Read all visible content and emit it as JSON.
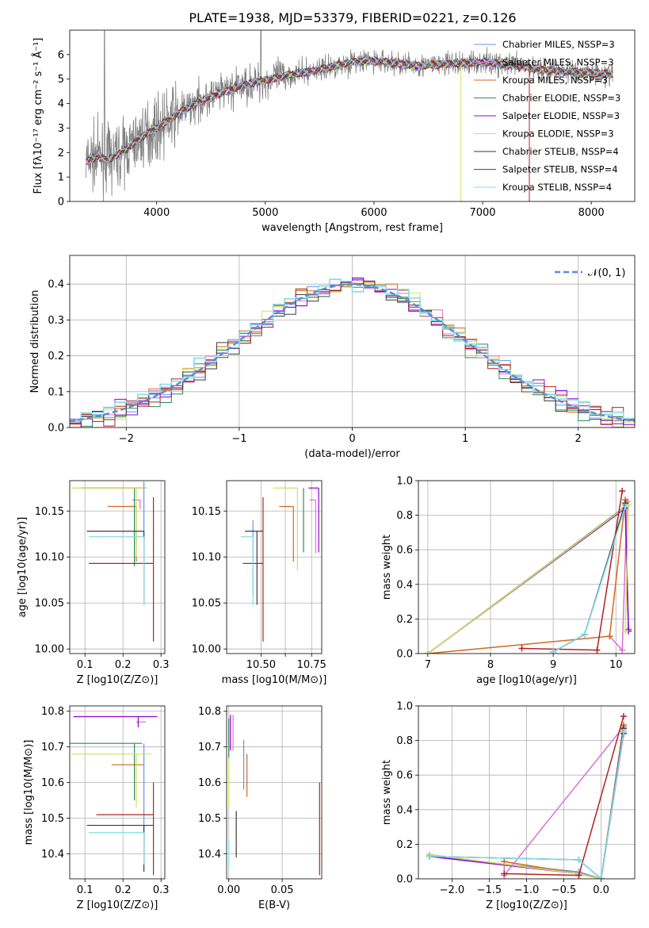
{
  "figure_title": "PLATE=1938, MJD=53379, FIBERID=0221, z=0.126",
  "legend_items": [
    {
      "label": "Chabrier MILES, N$_{SSP}$=3",
      "color": "#6495ed",
      "text": "Chabrier MILES, NSSP=3"
    },
    {
      "label": "Salpeter MILES",
      "color": "#da70d6",
      "text": "Salpeter MILES, NSSP=3"
    },
    {
      "label": "Kroupa MILES",
      "color": "#d2691e",
      "text": "Kroupa MILES, NSSP=3"
    },
    {
      "label": "Chabrier ELODIE",
      "color": "#2e8b57",
      "text": "Chabrier ELODIE, NSSP=3"
    },
    {
      "label": "Salpeter ELODIE",
      "color": "#9400d3",
      "text": "Salpeter ELODIE, NSSP=3"
    },
    {
      "label": "Kroupa ELODIE",
      "color": "#d4e157",
      "text": "Kroupa ELODIE, NSSP=3"
    },
    {
      "label": "Chabrier STELIB",
      "color": "#3a3a3a",
      "text": "Chabrier STELIB, NSSP=4"
    },
    {
      "label": "Salpeter STELIB",
      "color": "#b22222",
      "text": "Salpeter STELIB, NSSP=4"
    },
    {
      "label": "Kroupa STELIB",
      "color": "#80deea",
      "text": "Kroupa STELIB, NSSP=4"
    }
  ],
  "hist_legend": "𝒩(0, 1)",
  "chart_data": [
    {
      "type": "line",
      "id": "spectrum",
      "xlabel": "wavelength [Angstrom, rest frame]",
      "ylabel": "Flux [fλ10⁻¹⁷ erg cm⁻² s⁻¹ Å⁻¹]",
      "xlim": [
        3200,
        8400
      ],
      "ylim": [
        0,
        7
      ],
      "xticks": [
        4000,
        5000,
        6000,
        7000,
        8000
      ],
      "yticks": [
        0,
        1,
        2,
        3,
        4,
        5,
        6
      ],
      "data_color": "#808080",
      "model_anchors_x": [
        3350,
        3450,
        3550,
        3700,
        3850,
        4000,
        4200,
        4400,
        4600,
        4800,
        5000,
        5200,
        5400,
        5600,
        5800,
        6000,
        6200,
        6400,
        6600,
        6800,
        7000,
        7200,
        7400,
        7600,
        7800,
        8000,
        8200
      ],
      "model_anchors_y": [
        1.6,
        1.85,
        1.7,
        2.05,
        2.6,
        3.0,
        3.6,
        4.1,
        4.45,
        4.75,
        4.95,
        5.15,
        5.3,
        5.5,
        5.7,
        5.75,
        5.65,
        5.55,
        5.6,
        5.65,
        5.7,
        5.6,
        5.5,
        5.35,
        5.3,
        5.25,
        5.2
      ]
    },
    {
      "type": "area",
      "id": "residual-histogram",
      "xlabel": "(data-model)/error",
      "ylabel": "Normed distribution",
      "xlim": [
        -2.5,
        2.5
      ],
      "ylim": [
        0,
        0.48
      ],
      "xticks": [
        -2,
        -1,
        0,
        1,
        2
      ],
      "yticks": [
        0.0,
        0.1,
        0.2,
        0.3,
        0.4
      ],
      "bin_width": 0.1,
      "reference": "normal(0,1)"
    },
    {
      "type": "scatter",
      "id": "age-vs-Z",
      "xlabel": "Z [log10(Z/Z⊙)]",
      "ylabel": "age [log10(age/yr)]",
      "xlim": [
        0.06,
        0.31
      ],
      "ylim": [
        9.995,
        10.183
      ],
      "xticks": [
        0.1,
        0.2,
        0.3
      ],
      "yticks": [
        10.0,
        10.05,
        10.1,
        10.15
      ],
      "points": [
        {
          "x": 0.255,
          "xerr": [
            0.0,
            0.0
          ],
          "y": 10.162,
          "yerr": [
            0.045,
            0.02
          ],
          "c": 0
        },
        {
          "x": 0.245,
          "xerr": [
            0.02,
            0.0
          ],
          "y": 10.162,
          "yerr": [
            0.01,
            0.0
          ],
          "c": 1
        },
        {
          "x": 0.235,
          "xerr": [
            0.075,
            0.0
          ],
          "y": 10.155,
          "yerr": [
            0.06,
            0.0
          ],
          "c": 2
        },
        {
          "x": 0.23,
          "xerr": [
            0.0,
            0.0
          ],
          "y": 10.175,
          "yerr": [
            0.085,
            0.0
          ],
          "c": 3
        },
        {
          "x": 0.24,
          "xerr": [
            0.15,
            0.02
          ],
          "y": 10.175,
          "yerr": [
            0.0,
            0.0
          ],
          "c": 4
        },
        {
          "x": 0.235,
          "xerr": [
            0.17,
            0.03
          ],
          "y": 10.175,
          "yerr": [
            0.075,
            0.0
          ],
          "c": 5
        },
        {
          "x": 0.255,
          "xerr": [
            0.15,
            0.0
          ],
          "y": 10.128,
          "yerr": [
            0.08,
            0.0
          ],
          "c": 6
        },
        {
          "x": 0.28,
          "xerr": [
            0.17,
            0.0
          ],
          "y": 10.093,
          "yerr": [
            0.085,
            0.072
          ],
          "c": 7
        },
        {
          "x": 0.255,
          "xerr": [
            0.145,
            0.0
          ],
          "y": 10.122,
          "yerr": [
            0.075,
            0.0
          ],
          "c": 8
        }
      ]
    },
    {
      "type": "scatter",
      "id": "age-vs-mass",
      "xlabel": "mass [log10(M/M⊙)]",
      "ylabel": "",
      "xlim": [
        10.33,
        10.8
      ],
      "ylim": [
        9.995,
        10.183
      ],
      "xticks": [
        10.5,
        10.62,
        10.75
      ],
      "xticklabels": [
        "10.50",
        "",
        "10.75"
      ],
      "yticks": [
        10.0,
        10.05,
        10.1,
        10.15
      ],
      "points": [
        {
          "x": 10.46,
          "xerr": [
            0.0,
            0.0
          ],
          "y": 10.122,
          "yerr": [
            0.065,
            0.018
          ],
          "c": 0
        },
        {
          "x": 10.77,
          "xerr": [
            0.03,
            0.0
          ],
          "y": 10.162,
          "yerr": [
            0.058,
            0.0
          ],
          "c": 1
        },
        {
          "x": 10.66,
          "xerr": [
            0.07,
            0.0
          ],
          "y": 10.155,
          "yerr": [
            0.06,
            0.0
          ],
          "c": 2
        },
        {
          "x": 10.71,
          "xerr": [
            0.0,
            0.0
          ],
          "y": 10.175,
          "yerr": [
            0.07,
            0.0
          ],
          "c": 3
        },
        {
          "x": 10.785,
          "xerr": [
            0.05,
            0.0
          ],
          "y": 10.175,
          "yerr": [
            0.07,
            0.0
          ],
          "c": 4
        },
        {
          "x": 10.68,
          "xerr": [
            0.12,
            0.0
          ],
          "y": 10.175,
          "yerr": [
            0.09,
            0.0
          ],
          "c": 5
        },
        {
          "x": 10.48,
          "xerr": [
            0.06,
            0.03
          ],
          "y": 10.128,
          "yerr": [
            0.08,
            0.0
          ],
          "c": 6
        },
        {
          "x": 10.51,
          "xerr": [
            0.1,
            0.0
          ],
          "y": 10.093,
          "yerr": [
            0.085,
            0.072
          ],
          "c": 7
        },
        {
          "x": 10.46,
          "xerr": [
            0.06,
            0.0
          ],
          "y": 10.122,
          "yerr": [
            0.075,
            0.0
          ],
          "c": 8
        }
      ]
    },
    {
      "type": "line",
      "id": "mass-weight-vs-age",
      "xlabel": "age [log10(age/yr)]",
      "ylabel": "mass weight",
      "xlim": [
        6.85,
        10.3
      ],
      "ylim": [
        0,
        1
      ],
      "xticks": [
        7,
        8,
        9,
        10
      ],
      "yticks": [
        0.0,
        0.2,
        0.4,
        0.6,
        0.8,
        1.0
      ],
      "series": [
        {
          "c": 0,
          "x": [
            9.0,
            9.5,
            10.15
          ],
          "y": [
            0.01,
            0.11,
            0.86
          ]
        },
        {
          "c": 1,
          "x": [
            9.9,
            10.1,
            10.18
          ],
          "y": [
            0.1,
            0.02,
            0.88
          ]
        },
        {
          "c": 2,
          "x": [
            7.0,
            9.9,
            10.15
          ],
          "y": [
            0.0,
            0.1,
            0.89
          ]
        },
        {
          "c": 3,
          "x": [
            7.0,
            10.15,
            10.2
          ],
          "y": [
            0.0,
            0.85,
            0.14
          ]
        },
        {
          "c": 4,
          "x": [
            7.0,
            10.15,
            10.2
          ],
          "y": [
            0.0,
            0.84,
            0.13
          ]
        },
        {
          "c": 5,
          "x": [
            7.0,
            10.2,
            10.15
          ],
          "y": [
            0.0,
            0.86,
            0.13
          ]
        },
        {
          "c": 6,
          "x": [
            9.0,
            9.5,
            10.15
          ],
          "y": [
            0.01,
            0.11,
            0.87
          ]
        },
        {
          "c": 7,
          "x": [
            8.5,
            9.7,
            10.1
          ],
          "y": [
            0.03,
            0.02,
            0.94
          ]
        },
        {
          "c": 8,
          "x": [
            9.0,
            9.5,
            10.15
          ],
          "y": [
            0.01,
            0.11,
            0.85
          ]
        }
      ]
    },
    {
      "type": "scatter",
      "id": "mass-vs-Z",
      "xlabel": "Z [log10(Z/Z⊙)]",
      "ylabel": "mass [log10(M/M⊙)]",
      "xlim": [
        0.06,
        0.31
      ],
      "ylim": [
        10.33,
        10.815
      ],
      "xticks": [
        0.1,
        0.2,
        0.3
      ],
      "yticks": [
        10.4,
        10.5,
        10.6,
        10.7,
        10.8
      ],
      "points": [
        {
          "x": 0.255,
          "xerr": [
            0.0,
            0.0
          ],
          "y": 10.71,
          "yerr": [
            0.33,
            0.0
          ],
          "c": 0
        },
        {
          "x": 0.245,
          "xerr": [
            0.01,
            0.015
          ],
          "y": 10.77,
          "yerr": [
            0.0,
            0.0
          ],
          "c": 1
        },
        {
          "x": 0.23,
          "xerr": [
            0.06,
            0.025
          ],
          "y": 10.65,
          "yerr": [
            0.0,
            0.0
          ],
          "c": 2
        },
        {
          "x": 0.23,
          "xerr": [
            0.17,
            0.02
          ],
          "y": 10.71,
          "yerr": [
            0.16,
            0.0
          ],
          "c": 3
        },
        {
          "x": 0.24,
          "xerr": [
            0.17,
            0.05
          ],
          "y": 10.785,
          "yerr": [
            0.03,
            0.0
          ],
          "c": 4
        },
        {
          "x": 0.235,
          "xerr": [
            0.17,
            0.04
          ],
          "y": 10.68,
          "yerr": [
            0.15,
            0.0
          ],
          "c": 5
        },
        {
          "x": 0.255,
          "xerr": [
            0.15,
            0.025
          ],
          "y": 10.48,
          "yerr": [
            0.13,
            0.0
          ],
          "c": 6
        },
        {
          "x": 0.28,
          "xerr": [
            0.15,
            0.0
          ],
          "y": 10.51,
          "yerr": [
            0.17,
            0.09
          ],
          "c": 7
        },
        {
          "x": 0.255,
          "xerr": [
            0.145,
            0.0
          ],
          "y": 10.46,
          "yerr": [
            0.09,
            0.0
          ],
          "c": 8
        }
      ]
    },
    {
      "type": "scatter",
      "id": "mass-vs-ebv",
      "xlabel": "E(B-V)",
      "ylabel": "",
      "xlim": [
        -0.002,
        0.087
      ],
      "ylim": [
        10.33,
        10.815
      ],
      "xticks": [
        0.0,
        0.05
      ],
      "xticklabels": [
        "0.00",
        "0.05"
      ],
      "yticks": [
        10.4,
        10.5,
        10.6,
        10.7,
        10.8
      ],
      "points": [
        {
          "x": 0.014,
          "xerr": [
            0.0,
            0.0
          ],
          "y": 10.65,
          "yerr": [
            0.07,
            0.07
          ],
          "c": 0
        },
        {
          "x": 0.004,
          "xerr": [
            0.0,
            0.0
          ],
          "y": 10.74,
          "yerr": [
            0.05,
            0.05
          ],
          "c": 1
        },
        {
          "x": 0.017,
          "xerr": [
            0.0,
            0.0
          ],
          "y": 10.62,
          "yerr": [
            0.06,
            0.06
          ],
          "c": 2
        },
        {
          "x": 0.0,
          "xerr": [
            0.0,
            0.0
          ],
          "y": 10.72,
          "yerr": [
            0.05,
            0.06
          ],
          "c": 3
        },
        {
          "x": 0.0015,
          "xerr": [
            0.0,
            0.0
          ],
          "y": 10.74,
          "yerr": [
            0.05,
            0.05
          ],
          "c": 4
        },
        {
          "x": 0.0,
          "xerr": [
            0.0,
            0.0
          ],
          "y": 10.6,
          "yerr": [
            0.07,
            0.06
          ],
          "c": 5
        },
        {
          "x": 0.007,
          "xerr": [
            0.0,
            0.0
          ],
          "y": 10.45,
          "yerr": [
            0.06,
            0.07
          ],
          "c": 6
        },
        {
          "x": 0.085,
          "xerr": [
            0.0,
            0.0
          ],
          "y": 10.47,
          "yerr": [
            0.13,
            0.13
          ],
          "c": 7
        },
        {
          "x": 0.0,
          "xerr": [
            0.0,
            0.0
          ],
          "y": 10.4,
          "yerr": [
            0.04,
            0.04
          ],
          "c": 8
        }
      ]
    },
    {
      "type": "line",
      "id": "mass-weight-vs-Z",
      "xlabel": "Z [log10(Z/Z⊙)]",
      "ylabel": "mass weight",
      "xlim": [
        -2.45,
        0.45
      ],
      "ylim": [
        0,
        1
      ],
      "xticks": [
        -2.0,
        -1.5,
        -1.0,
        -0.5,
        0.0
      ],
      "yticks": [
        0.0,
        0.2,
        0.4,
        0.6,
        0.8,
        1.0
      ],
      "series": [
        {
          "c": 0,
          "x": [
            -2.3,
            -0.3,
            0.0,
            0.3
          ],
          "y": [
            0.13,
            0.04,
            0.0,
            0.86
          ]
        },
        {
          "c": 1,
          "x": [
            -1.3,
            -1.3,
            0.3
          ],
          "y": [
            0.1,
            0.02,
            0.88
          ]
        },
        {
          "c": 2,
          "x": [
            -1.3,
            -0.3,
            0.0,
            0.3
          ],
          "y": [
            0.1,
            0.03,
            0.0,
            0.89
          ]
        },
        {
          "c": 3,
          "x": [
            -2.3,
            -0.3,
            0.0,
            0.3
          ],
          "y": [
            0.14,
            0.03,
            0.0,
            0.85
          ]
        },
        {
          "c": 4,
          "x": [
            -2.3,
            -0.3,
            0.0,
            0.3
          ],
          "y": [
            0.13,
            0.03,
            0.0,
            0.84
          ]
        },
        {
          "c": 5,
          "x": [
            -2.3,
            -0.3,
            0.0,
            0.3
          ],
          "y": [
            0.14,
            0.03,
            0.0,
            0.86
          ]
        },
        {
          "c": 6,
          "x": [
            -2.3,
            -0.3,
            0.0,
            0.3
          ],
          "y": [
            0.13,
            0.11,
            0.0,
            0.87
          ]
        },
        {
          "c": 7,
          "x": [
            -1.3,
            -0.3,
            0.3
          ],
          "y": [
            0.03,
            0.02,
            0.94
          ]
        },
        {
          "c": 8,
          "x": [
            -2.3,
            -0.3,
            0.0,
            0.3
          ],
          "y": [
            0.13,
            0.11,
            0.0,
            0.85
          ]
        }
      ]
    }
  ]
}
